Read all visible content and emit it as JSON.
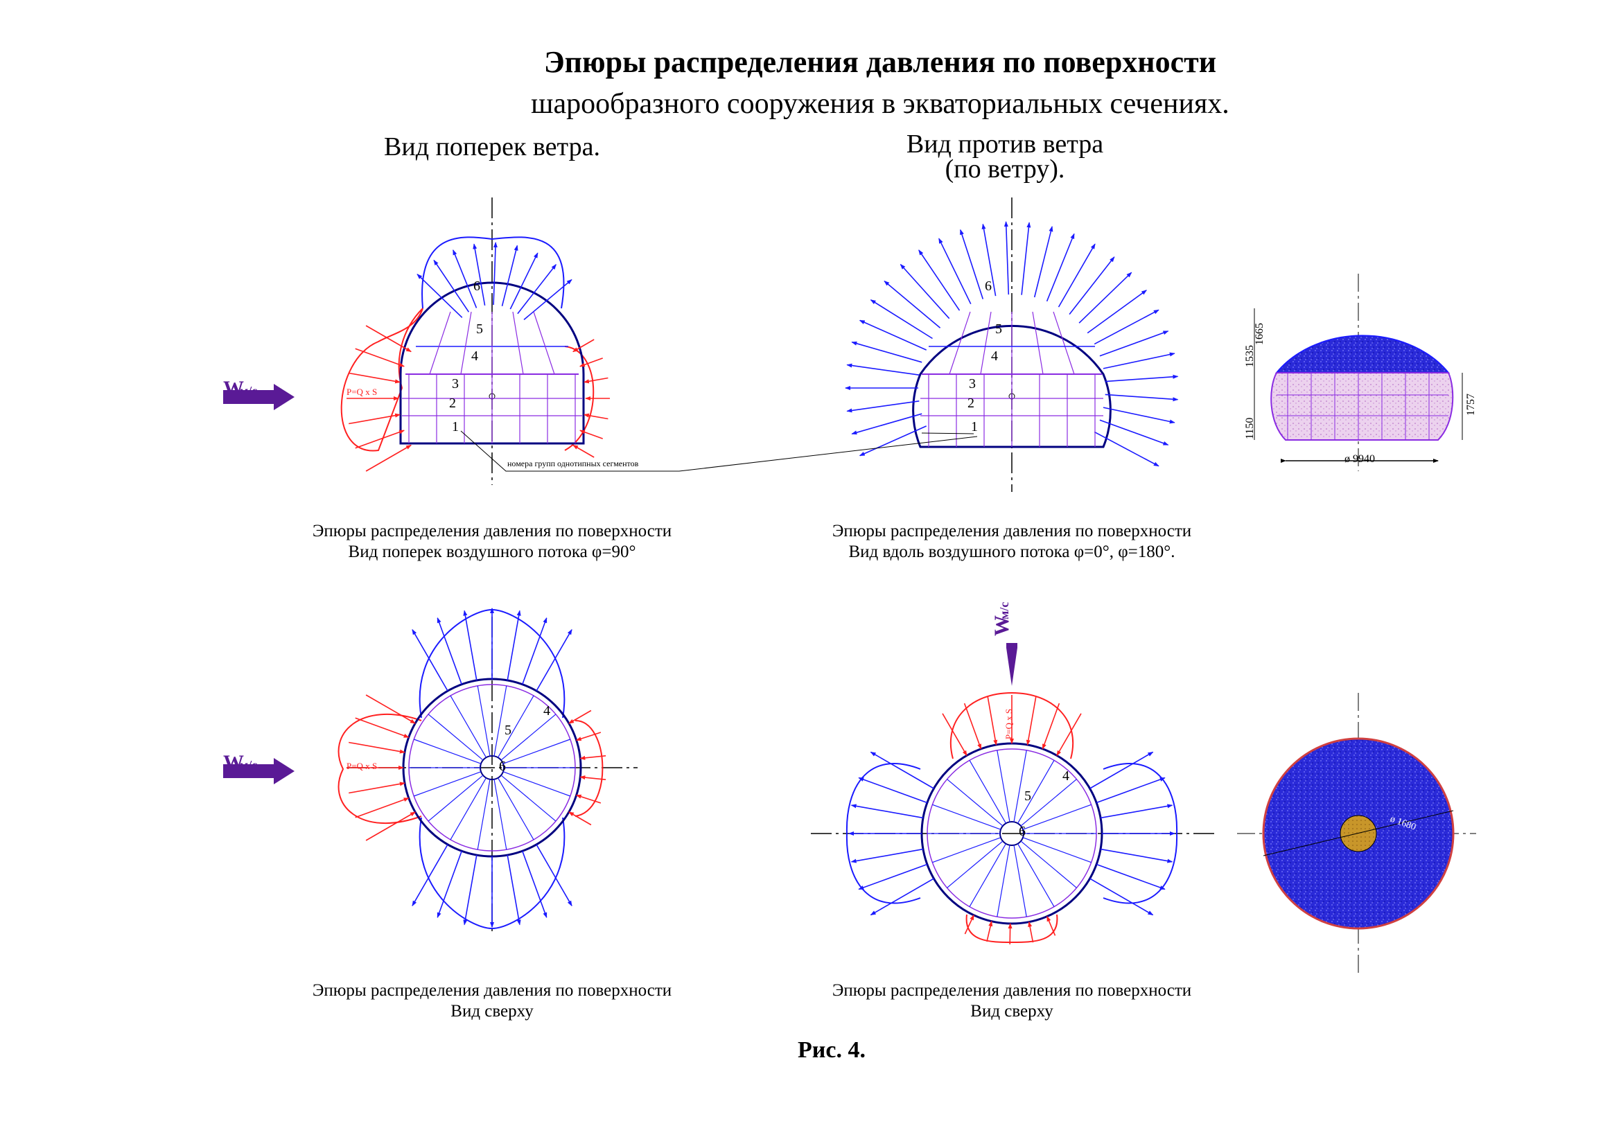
{
  "title": {
    "line1": "Эпюры распределения давления по поверхности",
    "line2": "шарообразного сооружения в экваториальных сечениях."
  },
  "view_labels": {
    "across_wind": "Вид поперек ветра.",
    "against_wind_line1": "Вид против ветра",
    "against_wind_line2": "(по ветру)."
  },
  "wind_label": {
    "main": "W",
    "sub": "м/с"
  },
  "pressure_formula": "P=Q x S",
  "segment_group_numbers": [
    "1",
    "2",
    "3",
    "4",
    "5",
    "6"
  ],
  "callout_note": "номера групп однотипных сегментов",
  "dimensions": {
    "diameter": "ø 9940",
    "right_height": "1757",
    "left_heights": [
      "1665",
      "1535",
      "1150"
    ],
    "top_view_inner_diameter": "ø 1680"
  },
  "captions": {
    "side_across": {
      "line1": "Эпюры распределения давления по поверхности",
      "line2": "Вид поперек воздушного потока φ=90°"
    },
    "side_along": {
      "line1": "Эпюры распределения давления по поверхности",
      "line2": "Вид вдоль воздушного потока φ=0°,  φ=180°."
    },
    "top_left": {
      "line1": "Эпюры распределения давления по поверхности",
      "line2": "Вид сверху"
    },
    "top_right": {
      "line1": "Эпюры распределения давления по поверхности",
      "line2": "Вид сверху"
    }
  },
  "figure_label": "Рис.  4.",
  "colors": {
    "suction": "#1a1aff",
    "pressure": "#ff2020",
    "wind_arrow": "#5a1a96",
    "structure": "#000080",
    "segments": "#8a2be2",
    "cap_fill": "#2a2ad8",
    "band_fill": "#e8c8ec",
    "core_fill": "#c8962a"
  }
}
